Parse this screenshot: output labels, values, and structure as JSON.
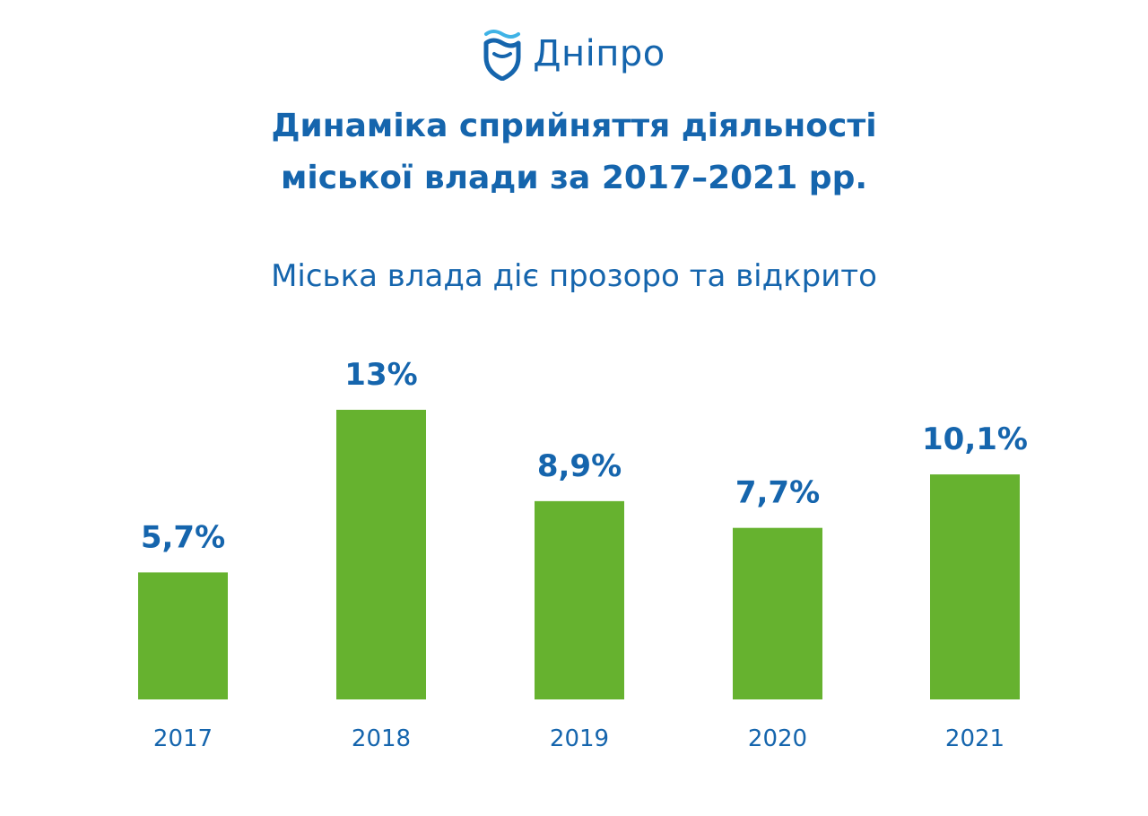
{
  "header": {
    "logo_text": "Дніпро",
    "logo_icon": "shield-wave-icon",
    "title_line1": "Динаміка сприйняття діяльності",
    "title_line2": "міської влади за 2017–2021 рр."
  },
  "colors": {
    "accent": "#1565ad",
    "bar": "#66b22f",
    "logo_wave": "#3fb3e6"
  },
  "chart_data": {
    "type": "bar",
    "title": "Міська влада діє прозоро та відкрито",
    "categories": [
      "2017",
      "2018",
      "2019",
      "2020",
      "2021"
    ],
    "values": [
      5.7,
      13,
      8.9,
      7.7,
      10.1
    ],
    "value_labels": [
      "5,7%",
      "13%",
      "8,9%",
      "7,7%",
      "10,1%"
    ],
    "xlabel": "",
    "ylabel": "",
    "ylim": [
      0,
      13
    ],
    "grid": false,
    "legend": "none"
  }
}
